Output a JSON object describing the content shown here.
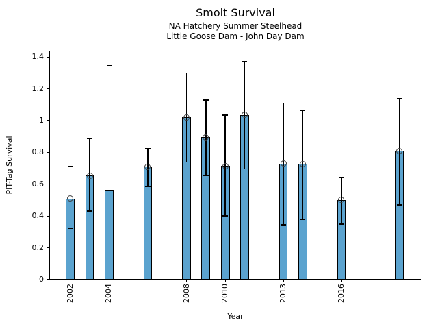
{
  "chart_data": {
    "type": "bar",
    "title": "Smolt Survival",
    "subtitle1": "NA Hatchery Summer Steelhead",
    "subtitle2": "Little Goose Dam - John Day Dam",
    "xlabel": "Year",
    "ylabel": "PIT-Tag Survival",
    "xlim": [
      2000.95,
      2020.1
    ],
    "ylim": [
      0,
      1.435
    ],
    "yticks": [
      0,
      0.2,
      0.4,
      0.6,
      0.8,
      1.0,
      1.2,
      1.4
    ],
    "ytick_labels": [
      "0",
      "0.2",
      "0.4",
      "0.6",
      "0.8",
      "1",
      "1.2",
      "1.4"
    ],
    "xticks": [
      2002,
      2004,
      2008,
      2010,
      2013,
      2016
    ],
    "xtick_labels": [
      "2002",
      "2004",
      "2008",
      "2010",
      "2013",
      "2016"
    ],
    "grid": false,
    "legend": "none",
    "bar_width_years": 0.45,
    "colors": {
      "bar_fill": "#5BA3CF",
      "bar_edge": "#000000",
      "error_bar": "#000000",
      "marker_edge": "#3b3b3b",
      "background": "#ffffff",
      "text": "#000000"
    },
    "series": [
      {
        "name": "PIT-Tag Survival",
        "points": [
          {
            "year": 2002,
            "value": 0.51,
            "ci_low": 0.32,
            "ci_high": 0.71,
            "marker": true
          },
          {
            "year": 2003,
            "value": 0.655,
            "ci_low": 0.43,
            "ci_high": 0.885,
            "marker": true
          },
          {
            "year": 2004,
            "value": 0.565,
            "ci_low": 0.0,
            "ci_high": 1.345,
            "marker": false
          },
          {
            "year": 2006,
            "value": 0.71,
            "ci_low": 0.585,
            "ci_high": 0.825,
            "marker": true
          },
          {
            "year": 2008,
            "value": 1.02,
            "ci_low": 0.74,
            "ci_high": 1.3,
            "marker": true
          },
          {
            "year": 2009,
            "value": 0.895,
            "ci_low": 0.655,
            "ci_high": 1.13,
            "marker": true
          },
          {
            "year": 2010,
            "value": 0.715,
            "ci_low": 0.4,
            "ci_high": 1.035,
            "marker": true
          },
          {
            "year": 2011,
            "value": 1.035,
            "ci_low": 0.695,
            "ci_high": 1.37,
            "marker": true
          },
          {
            "year": 2013,
            "value": 0.73,
            "ci_low": 0.345,
            "ci_high": 1.11,
            "marker": true
          },
          {
            "year": 2014,
            "value": 0.727,
            "ci_low": 0.38,
            "ci_high": 1.065,
            "marker": true
          },
          {
            "year": 2016,
            "value": 0.5,
            "ci_low": 0.35,
            "ci_high": 0.645,
            "marker": true
          },
          {
            "year": 2019,
            "value": 0.81,
            "ci_low": 0.47,
            "ci_high": 1.14,
            "marker": true
          }
        ]
      }
    ]
  }
}
